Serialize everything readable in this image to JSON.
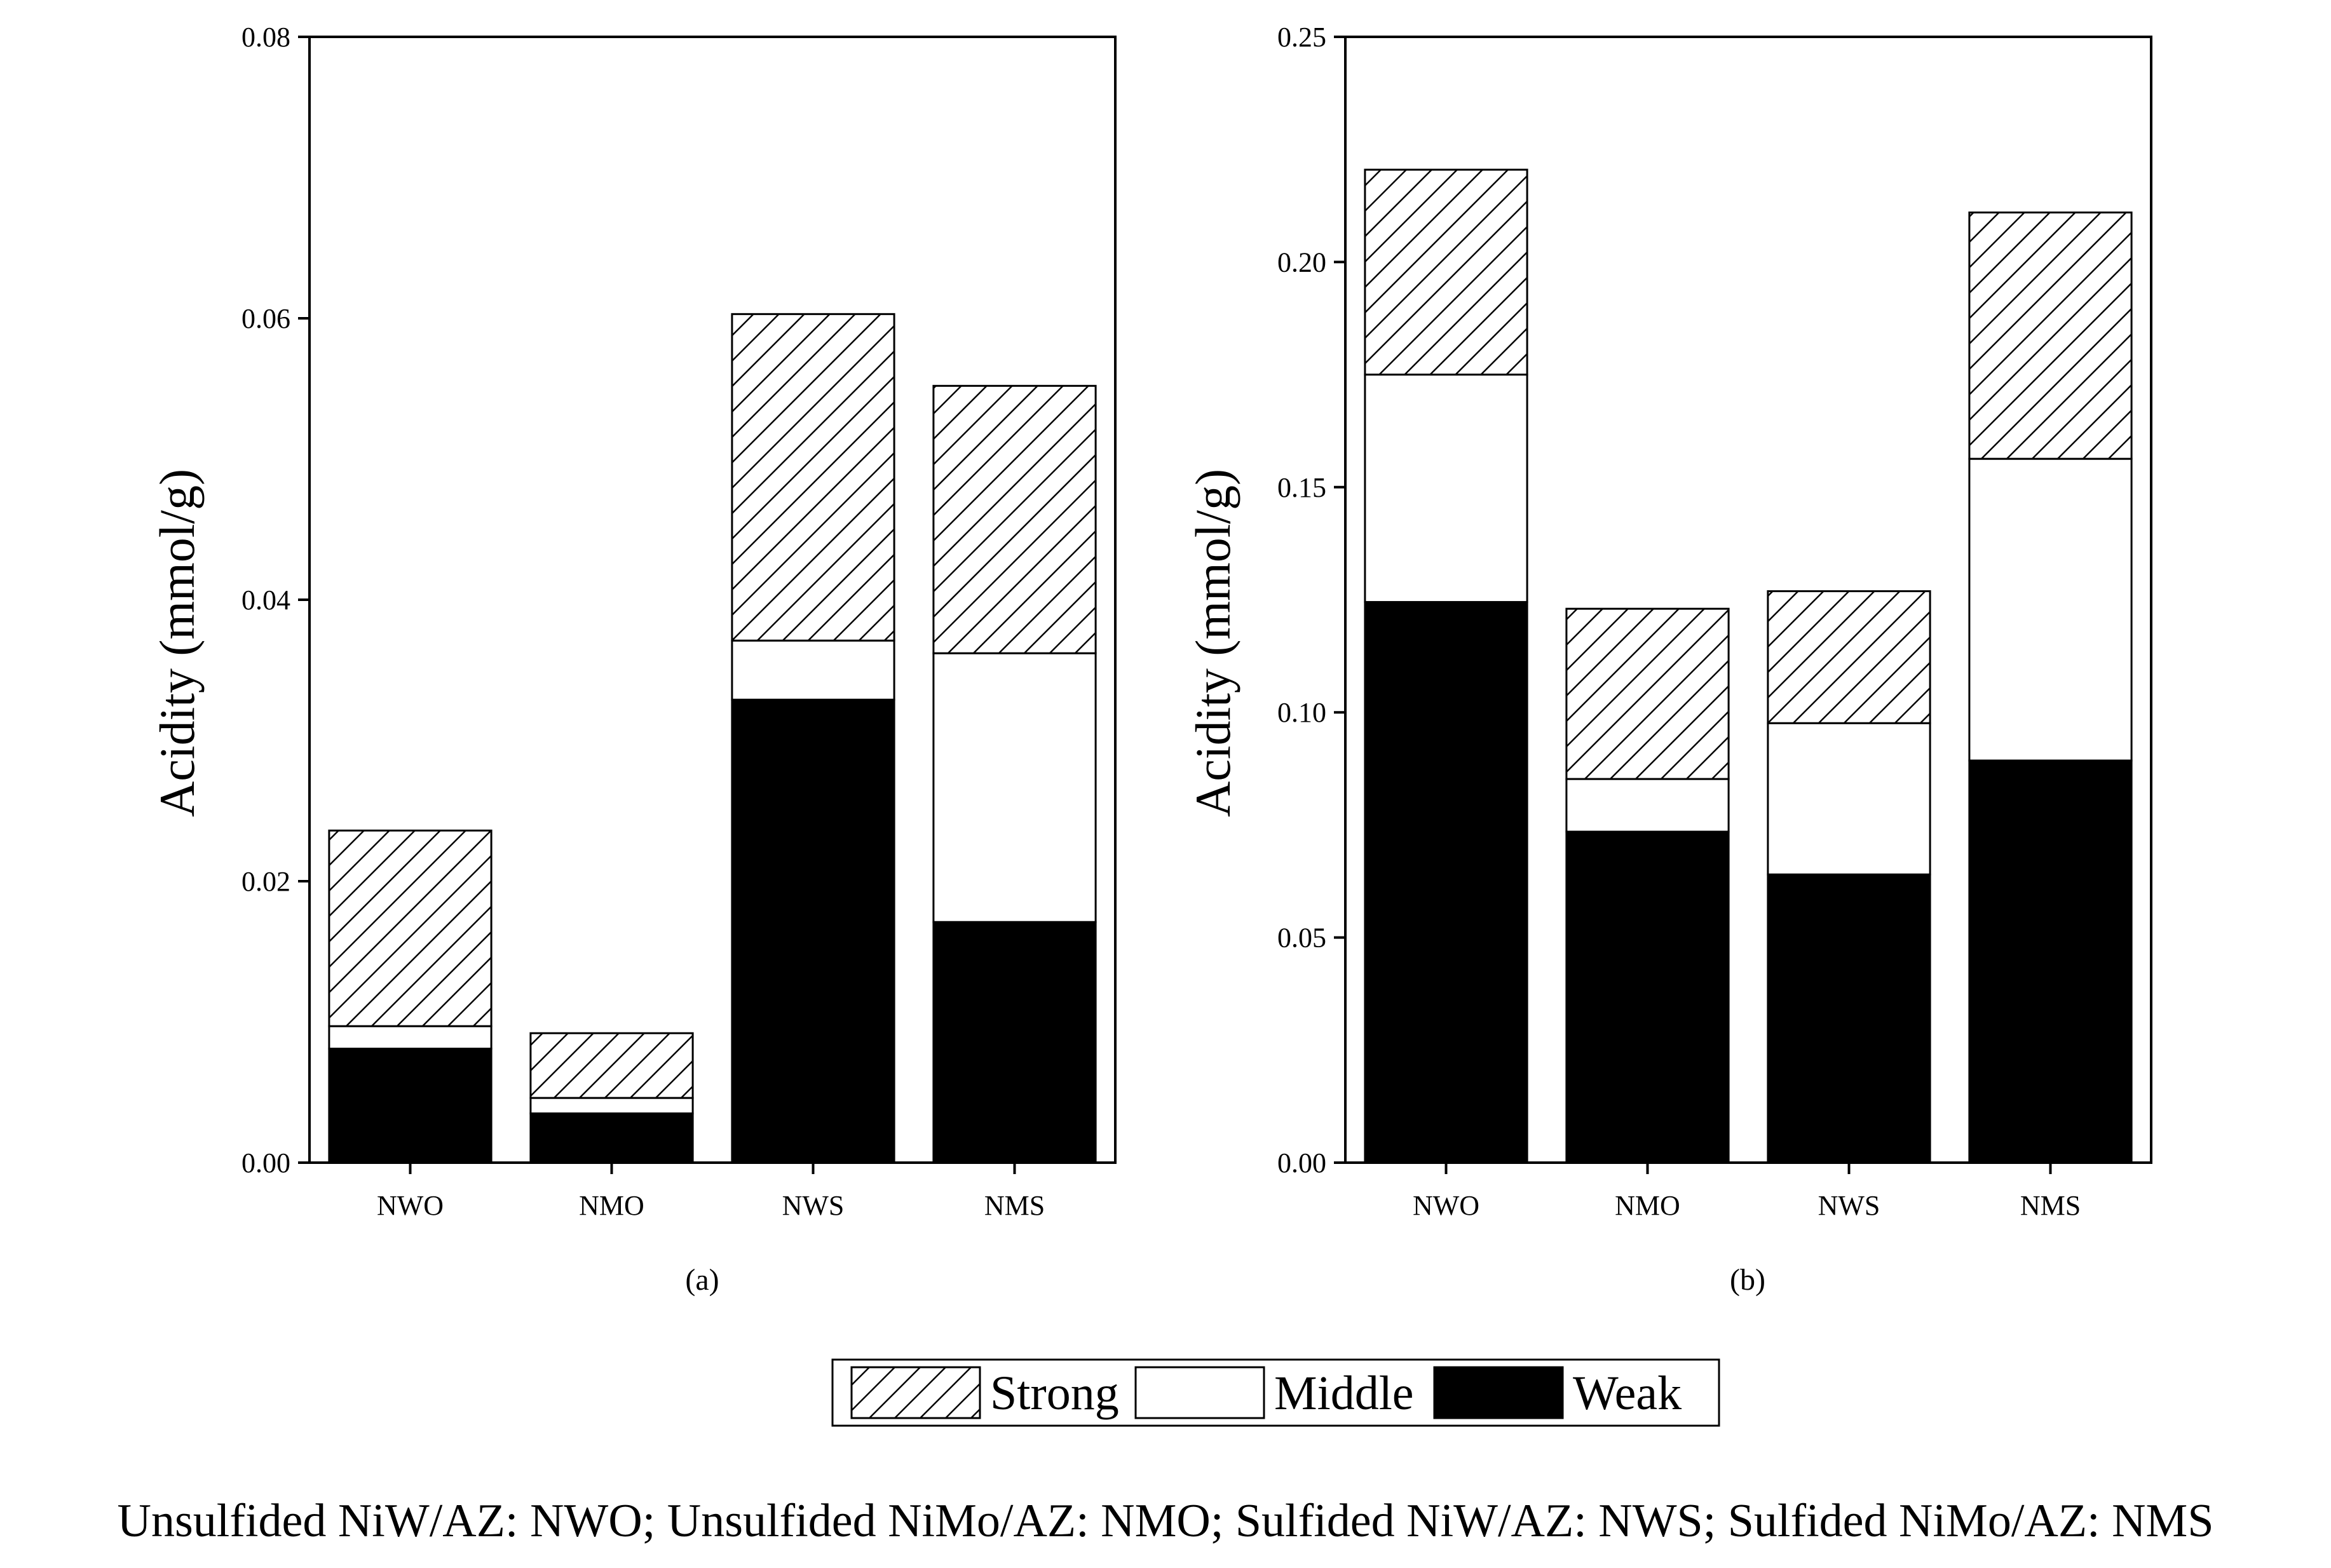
{
  "chart_data": [
    {
      "type": "bar",
      "stacked": true,
      "panel_label": "(a)",
      "ylabel": "Acidity (mmol/g)",
      "ylim": [
        0,
        0.08
      ],
      "yticks": [
        "0.00",
        "0.02",
        "0.04",
        "0.06",
        "0.08"
      ],
      "categories": [
        "NWO",
        "NMO",
        "NWS",
        "NMS"
      ],
      "series": [
        {
          "name": "Weak",
          "values": [
            0.0081,
            0.0035,
            0.0329,
            0.0171
          ]
        },
        {
          "name": "Middle",
          "values": [
            0.0016,
            0.0011,
            0.0042,
            0.0191
          ]
        },
        {
          "name": "Strong",
          "values": [
            0.0139,
            0.0046,
            0.0232,
            0.019
          ]
        }
      ]
    },
    {
      "type": "bar",
      "stacked": true,
      "panel_label": "(b)",
      "ylabel": "Acidity (mmol/g)",
      "ylim": [
        0,
        0.25
      ],
      "yticks": [
        "0.00",
        "0.05",
        "0.10",
        "0.15",
        "0.20",
        "0.25"
      ],
      "categories": [
        "NWO",
        "NMO",
        "NWS",
        "NMS"
      ],
      "series": [
        {
          "name": "Weak",
          "values": [
            0.1245,
            0.0735,
            0.064,
            0.0893
          ]
        },
        {
          "name": "Middle",
          "values": [
            0.0505,
            0.0117,
            0.0336,
            0.067
          ]
        },
        {
          "name": "Strong",
          "values": [
            0.0455,
            0.0378,
            0.0293,
            0.0547
          ]
        }
      ]
    }
  ],
  "legend": {
    "items": [
      {
        "name": "Strong",
        "style": "hatched"
      },
      {
        "name": "Middle",
        "style": "white"
      },
      {
        "name": "Weak",
        "style": "black"
      }
    ]
  },
  "caption": "Unsulfided NiW/AZ: NWO; Unsulfided NiMo/AZ: NMO; Sulfided NiW/AZ: NWS; Sulfided NiMo/AZ: NMS",
  "colors": {
    "weak": "#000000",
    "middle": "#ffffff",
    "strong_hatch": "#000000"
  }
}
